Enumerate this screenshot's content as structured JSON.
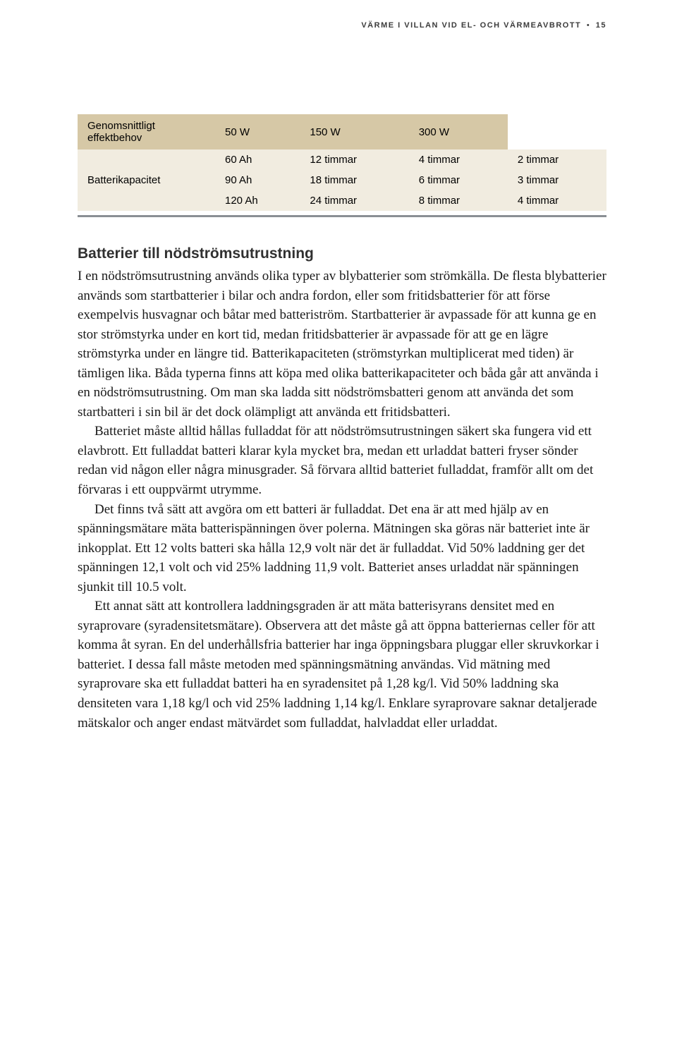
{
  "header": {
    "title": "VÄRME I VILLAN VID EL- OCH VÄRMEAVBROTT",
    "bullet": "•",
    "page_number": "15"
  },
  "table": {
    "head": {
      "c0": "Genomsnittligt effektbehov",
      "c1": "50 W",
      "c2": "150 W",
      "c3": "300 W"
    },
    "rowlabel": "Batterikapacitet",
    "rows": [
      {
        "c0": "60 Ah",
        "c1": "12 timmar",
        "c2": "4 timmar",
        "c3": "2 timmar"
      },
      {
        "c0": "90 Ah",
        "c1": "18 timmar",
        "c2": "6 timmar",
        "c3": "3 timmar"
      },
      {
        "c0": "120 Ah",
        "c1": "24 timmar",
        "c2": "8 timmar",
        "c3": "4 timmar"
      }
    ]
  },
  "section": {
    "heading": "Batterier till nödströmsutrustning",
    "p1": "I en nödströmsutrustning används olika typer av blybatterier som strömkälla. De flesta blybatterier används som startbatterier i bilar och andra fordon, eller som fritidsbatterier för att förse exempelvis husvagnar och båtar med batteriström. Startbatterier är avpassade för att kunna ge en stor strömstyrka under en kort tid, medan fritidsbatterier är avpassade för att ge en lägre strömstyrka under en längre tid. Batterikapaciteten (strömstyrkan multiplicerat med tiden) är tämligen lika. Båda typerna finns att köpa med olika batterikapaciteter och båda går att använda i en nödströmsutrustning. Om man ska ladda sitt nödströmsbatteri genom att använda det som startbatteri i sin bil är det dock olämpligt att använda ett fritidsbatteri.",
    "p2": "Batteriet måste alltid hållas fulladdat för att nödströmsutrustningen säkert ska fungera vid ett elavbrott. Ett fulladdat batteri klarar kyla mycket bra, medan ett urladdat batteri fryser sönder redan vid någon eller några minusgrader. Så förvara alltid batteriet fulladdat, framför allt om det förvaras i ett ouppvärmt utrymme.",
    "p3": "Det finns två sätt att avgöra om ett batteri är fulladdat. Det ena är att med hjälp av en spänningsmätare mäta batterispänningen över polerna. Mätningen ska göras när batteriet inte är inkopplat. Ett 12 volts batteri ska hålla 12,9 volt när det är fulladdat. Vid 50% laddning ger det spänningen 12,1 volt och vid 25% laddning 11,9 volt. Batteriet anses urladdat när spänningen sjunkit till 10.5 volt.",
    "p4": "Ett annat sätt att kontrollera laddningsgraden är att mäta batterisyrans densitet med en syraprovare (syradensitetsmätare). Observera att det måste gå att öppna batteriernas celler för att komma åt syran. En del underhållsfria batterier har inga öppningsbara pluggar eller skruvkorkar i batteriet. I dessa fall måste metoden med spänningsmätning användas. Vid mätning med syraprovare ska ett fulladdat batteri ha en syradensitet på 1,28 kg/l. Vid 50% laddning ska densiteten vara 1,18 kg/l och vid 25% laddning 1,14 kg/l. Enklare syraprovare saknar detaljerade mätskalor och anger endast mätvärdet som fulladdat, halvladdat eller urladdat."
  }
}
